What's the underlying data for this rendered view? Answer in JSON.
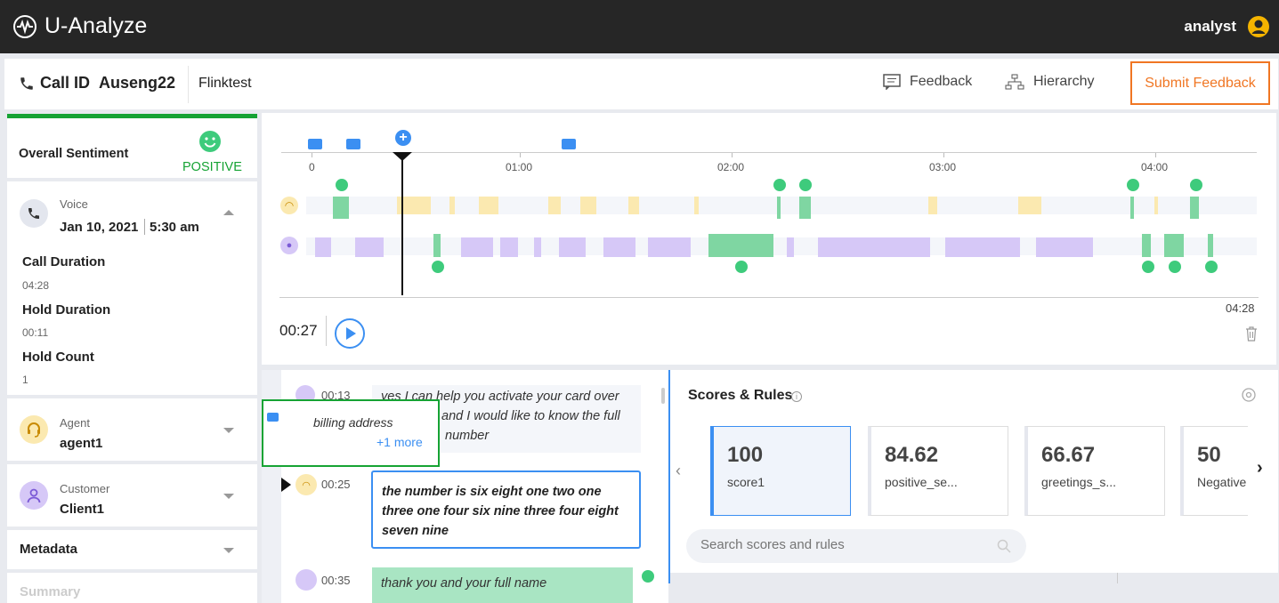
{
  "app": {
    "title": "U-Analyze",
    "user": "analyst"
  },
  "call": {
    "id_label": "Call ID",
    "id": "Auseng22",
    "project": "Flinktest",
    "feedback": "Feedback",
    "hierarchy": "Hierarchy",
    "submit": "Submit Feedback"
  },
  "sidebar": {
    "sentiment": {
      "label": "Overall Sentiment",
      "value": "POSITIVE"
    },
    "voice": {
      "label": "Voice",
      "date": "Jan 10, 2021",
      "time": "5:30 am",
      "call_duration_label": "Call Duration",
      "call_duration": "04:28",
      "hold_duration_label": "Hold Duration",
      "hold_duration": "00:11",
      "hold_count_label": "Hold Count",
      "hold_count": "1"
    },
    "agent": {
      "label": "Agent",
      "name": "agent1"
    },
    "customer": {
      "label": "Customer",
      "name": "Client1"
    },
    "metadata": "Metadata",
    "summary": "Summary"
  },
  "timeline": {
    "ticks": [
      "0",
      "01:00",
      "02:00",
      "03:00",
      "04:00"
    ],
    "end": "04:28",
    "current": "00:27"
  },
  "transcript": {
    "rows": [
      {
        "time": "00:13",
        "text": "yes I can help you activate your card over ... and I would like to know the full ... number"
      },
      {
        "time": "00:25",
        "text": "the number is six eight one two one three one four six nine three four eight seven nine"
      },
      {
        "time": "00:35",
        "text": "thank you and your full name"
      }
    ],
    "row1_line1": "yes I can help you activate your card over",
    "row1_line2": "and I would like to know the full",
    "row1_line3": "number",
    "tooltip": {
      "text": "billing address",
      "more": "+1 more"
    }
  },
  "scores": {
    "title": "Scores & Rules",
    "search_placeholder": "Search scores and rules",
    "cards": [
      {
        "value": "100",
        "name": "score1"
      },
      {
        "value": "84.62",
        "name": "positive_se..."
      },
      {
        "value": "66.67",
        "name": "greetings_s..."
      },
      {
        "value": "50",
        "name": "Negative"
      }
    ]
  },
  "colors": {
    "accent": "#f07623",
    "positive": "#3ecb7c",
    "agent": "#fbe9b0",
    "customer": "#d6c8f7",
    "blue": "#3b8ff2"
  }
}
